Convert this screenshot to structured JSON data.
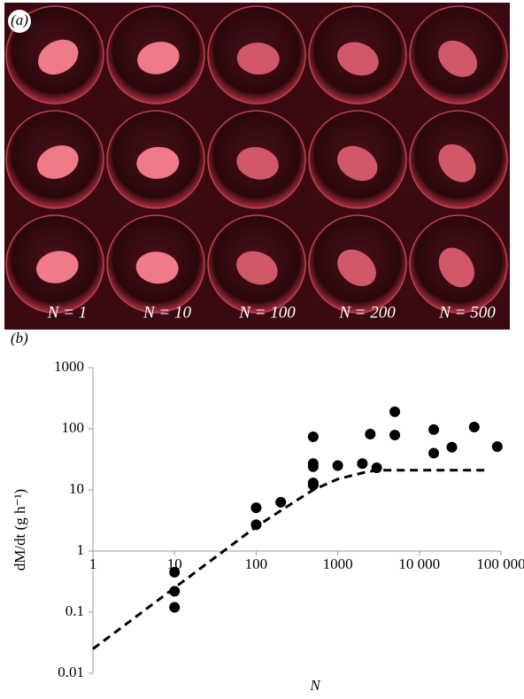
{
  "photo": {
    "panel_label": "(a)",
    "captions": [
      "N = 1",
      "N = 10",
      "N = 100",
      "N = 200",
      "N = 500"
    ]
  },
  "chart_data": {
    "type": "scatter",
    "panel_label": "(b)",
    "x_label": "N",
    "y_label": "dM/dt (g h⁻¹)",
    "x": [
      10,
      10,
      10,
      100,
      100,
      200,
      500,
      500,
      500,
      500,
      500,
      1000,
      2000,
      2500,
      3000,
      5000,
      5000,
      15000,
      15000,
      25000,
      47000,
      90000
    ],
    "values": [
      0.45,
      0.22,
      0.12,
      5.1,
      2.7,
      6.3,
      74,
      27,
      24,
      13,
      12,
      25,
      27,
      82,
      23,
      190,
      79,
      97,
      40,
      50,
      107,
      51
    ],
    "color": "#000000",
    "fit": {
      "x": [
        1,
        10,
        100,
        300,
        500,
        1000,
        2000,
        3000,
        5000,
        70000
      ],
      "values": [
        0.025,
        0.25,
        2.5,
        6.5,
        10,
        15,
        19,
        21,
        21,
        21
      ]
    },
    "log_x": true,
    "log_y": true,
    "xlim": [
      1,
      100000
    ],
    "ylim": [
      0.01,
      1000
    ],
    "xticks": [
      1,
      10,
      100,
      1000,
      {
        "value": 10000,
        "label": "10 000"
      },
      {
        "value": 100000,
        "label": "100 000"
      }
    ],
    "yticks": [
      0.01,
      0.1,
      1,
      10,
      100,
      1000
    ]
  }
}
